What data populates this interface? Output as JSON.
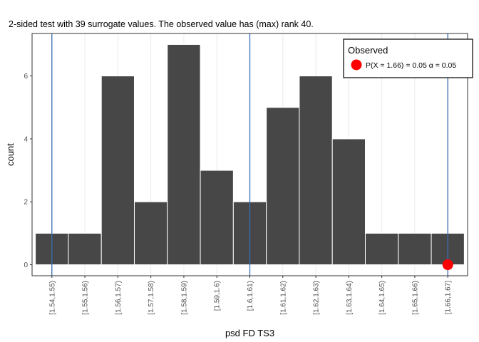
{
  "chart_data": {
    "type": "bar",
    "title": "2-sided test with 39 surrogate values. The observed value has (max) rank 40.",
    "xlabel": "psd FD TS3",
    "ylabel": "count",
    "categories": [
      "[1.54,1.55)",
      "[1.55,1.56)",
      "[1.56,1.57)",
      "[1.57,1.58)",
      "[1.58,1.59)",
      "[1.59,1.6)",
      "[1.6,1.61)",
      "[1.61,1.62)",
      "[1.62,1.63)",
      "[1.63,1.64)",
      "[1.64,1.65)",
      "[1.65,1.66)",
      "[1.66,1.67]"
    ],
    "values": [
      1,
      1,
      6,
      2,
      7,
      3,
      2,
      5,
      6,
      4,
      1,
      1,
      1
    ],
    "ylim": [
      -0.35,
      7.35
    ],
    "yticks": [
      0,
      2,
      4,
      6
    ],
    "vlines_category_positions": [
      1,
      7,
      13
    ],
    "observed_point": {
      "category_position": 13,
      "y": 0
    },
    "grid": true,
    "colors": {
      "bar_fill": "#474747",
      "bar_stroke": "#ffffff",
      "vline": "#3b6eb3",
      "observed": "#ff0000",
      "grid": "#ebebeb",
      "panel_border": "#333333"
    },
    "legend": {
      "title": "Observed",
      "label": "P(X = 1.66) = 0.05  α = 0.05",
      "placement": "top-right"
    }
  }
}
